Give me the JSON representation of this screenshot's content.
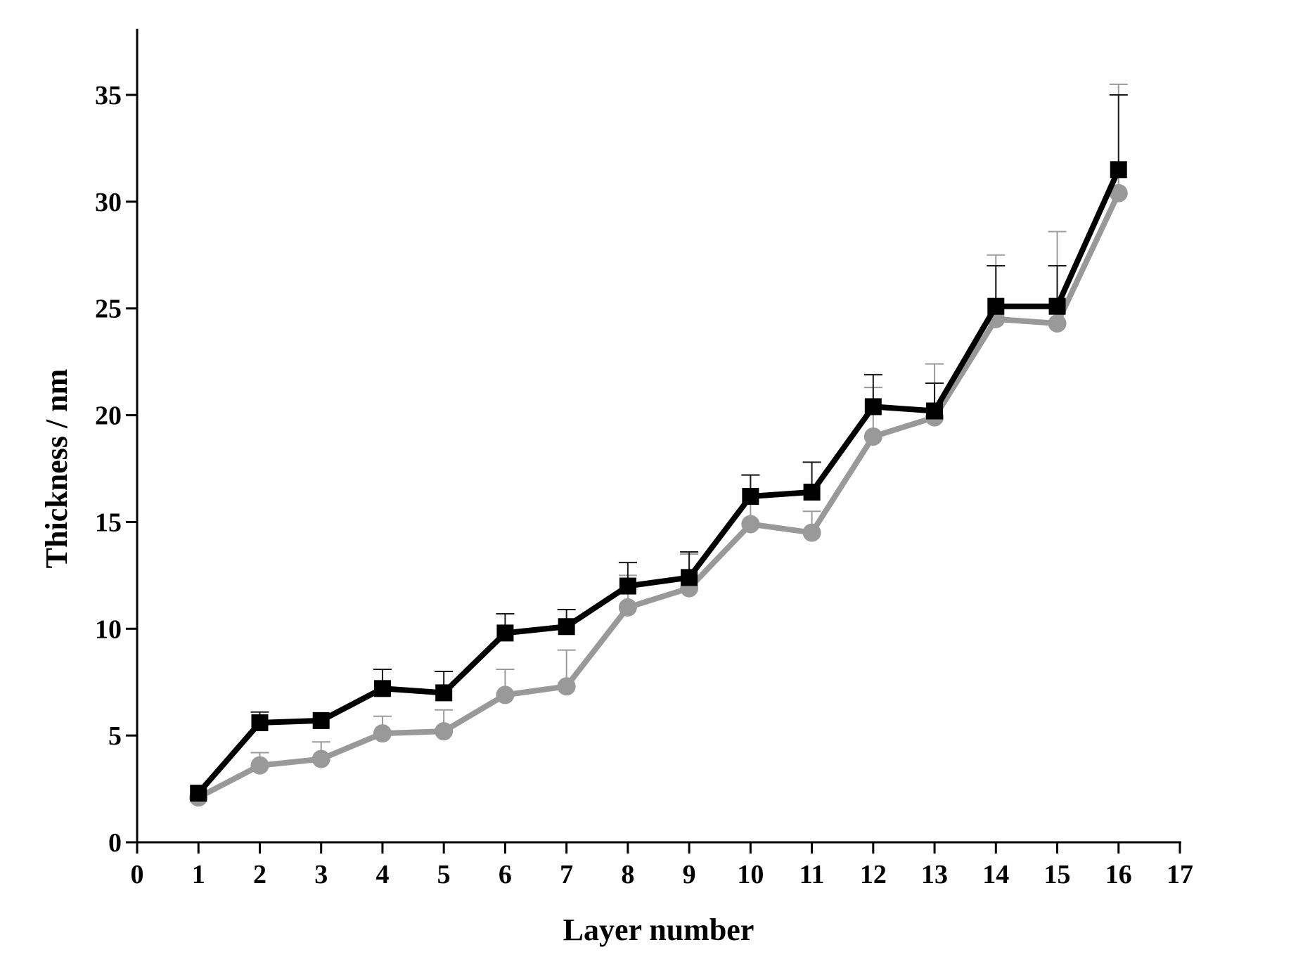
{
  "chart_data": {
    "type": "line",
    "title": "",
    "xlabel": "Layer number",
    "ylabel": "Thickness / nm",
    "xlim": [
      0,
      17
    ],
    "ylim": [
      0,
      38
    ],
    "xticks": [
      "0",
      "1",
      "2",
      "3",
      "4",
      "5",
      "6",
      "7",
      "8",
      "9",
      "10",
      "11",
      "12",
      "13",
      "14",
      "15",
      "16",
      "17"
    ],
    "yticks": [
      "0",
      "5",
      "10",
      "15",
      "20",
      "25",
      "30",
      "35"
    ],
    "grid": false,
    "legend": "none",
    "x": [
      1,
      2,
      3,
      4,
      5,
      6,
      7,
      8,
      9,
      10,
      11,
      12,
      13,
      14,
      15,
      16
    ],
    "series": [
      {
        "marker": "square",
        "color": "#000000",
        "values": [
          2.3,
          5.6,
          5.7,
          7.2,
          7.0,
          9.8,
          10.1,
          12.0,
          12.4,
          16.2,
          16.4,
          20.4,
          20.2,
          25.1,
          25.1,
          31.5
        ],
        "error_plus": [
          0.0,
          0.5,
          0.0,
          0.9,
          1.0,
          0.9,
          0.8,
          1.1,
          1.2,
          1.0,
          1.4,
          1.5,
          1.3,
          1.9,
          1.9,
          3.5
        ]
      },
      {
        "marker": "circle",
        "color": "#999999",
        "values": [
          2.1,
          3.6,
          3.9,
          5.1,
          5.2,
          6.9,
          7.3,
          11.0,
          11.9,
          14.9,
          14.5,
          19.0,
          19.9,
          24.5,
          24.3,
          30.4
        ],
        "error_plus": [
          0.0,
          0.6,
          0.8,
          0.8,
          1.0,
          1.2,
          1.7,
          1.5,
          1.6,
          2.3,
          1.0,
          2.3,
          2.5,
          3.0,
          4.3,
          5.1
        ]
      }
    ]
  }
}
